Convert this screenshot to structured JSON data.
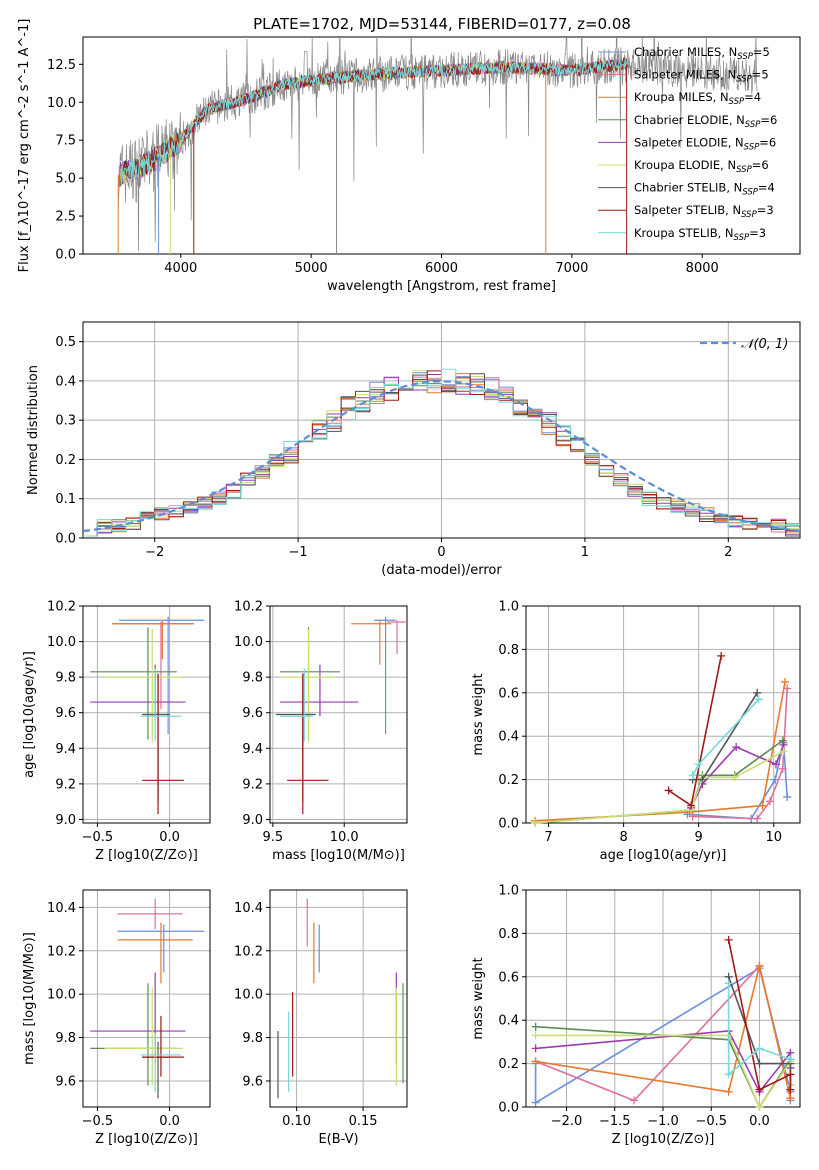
{
  "page_title": "PLATE=1702, MJD=53144, FIBERID=0177, z=0.08",
  "colors": {
    "chabrier_miles": "#6a8fdc",
    "salpeter_miles": "#e0709a",
    "kroupa_miles": "#e87a2c",
    "chabrier_elodie": "#5f8a5a",
    "salpeter_elodie": "#9b3bb0",
    "kroupa_elodie": "#c8e070",
    "chabrier_stelib": "#555555",
    "salpeter_stelib": "#a01818",
    "kroupa_stelib": "#78d8dc",
    "normal_curve": "#5a8fd8"
  },
  "chart_data": [
    {
      "id": "spectrum",
      "type": "line",
      "title": "PLATE=1702, MJD=53144, FIBERID=0177, z=0.08",
      "xlabel": "wavelength [Angstrom, rest frame]",
      "ylabel": "Flux [f_λ10^-17 erg cm^-2 s^-1 A^-1]",
      "xlim": [
        3250,
        8750
      ],
      "ylim": [
        0,
        14.3
      ],
      "xticks": [
        "4000",
        "5000",
        "6000",
        "7000",
        "8000"
      ],
      "yticks": [
        "0.0",
        "2.5",
        "5.0",
        "7.5",
        "10.0",
        "12.5"
      ],
      "grid": false,
      "legend_position": "right",
      "series": [
        {
          "name": "Chabrier MILES, N",
          "sub": "SSP",
          "suffix": "=5",
          "color": "#6a8fdc"
        },
        {
          "name": "Salpeter MILES, N",
          "sub": "SSP",
          "suffix": "=5",
          "color": "#e0709a"
        },
        {
          "name": "Kroupa MILES, N",
          "sub": "SSP",
          "suffix": "=4",
          "color": "#e87a2c"
        },
        {
          "name": "Chabrier ELODIE, N",
          "sub": "SSP",
          "suffix": "=6",
          "color": "#5f8a5a"
        },
        {
          "name": "Salpeter ELODIE, N",
          "sub": "SSP",
          "suffix": "=6",
          "color": "#9b3bb0"
        },
        {
          "name": "Kroupa ELODIE, N",
          "sub": "SSP",
          "suffix": "=6",
          "color": "#c8e070"
        },
        {
          "name": "Chabrier STELIB, N",
          "sub": "SSP",
          "suffix": "=4",
          "color": "#555555"
        },
        {
          "name": "Salpeter STELIB, N",
          "sub": "SSP",
          "suffix": "=3",
          "color": "#a01818"
        },
        {
          "name": "Kroupa STELIB, N",
          "sub": "SSP",
          "suffix": "=3",
          "color": "#78d8dc"
        }
      ],
      "continuum": {
        "wavelength": [
          3520,
          3700,
          3850,
          4000,
          4200,
          4500,
          4800,
          5200,
          5600,
          6000,
          6500,
          7000,
          7400
        ],
        "flux": [
          5.2,
          5.8,
          6.5,
          7.5,
          9.5,
          10.2,
          11.2,
          11.6,
          11.9,
          12.1,
          12.3,
          12.1,
          12.5
        ]
      }
    },
    {
      "id": "residuals",
      "type": "line",
      "xlabel": "(data-model)/error",
      "ylabel": "Normed distribution",
      "xlim": [
        -2.5,
        2.5
      ],
      "ylim": [
        0,
        0.55
      ],
      "xticks": [
        "−2",
        "−1",
        "0",
        "1",
        "2"
      ],
      "yticks": [
        "0.0",
        "0.1",
        "0.2",
        "0.3",
        "0.4",
        "0.5"
      ],
      "grid": true,
      "legend_position": "top-right",
      "legend_label": "𝒩(0, 1)",
      "normal_curve": {
        "mean": 0,
        "sigma": 1
      },
      "bins": {
        "start": -2.5,
        "width": 0.1
      },
      "histogram_center": [
        0.02,
        0.03,
        0.03,
        0.04,
        0.05,
        0.06,
        0.07,
        0.08,
        0.09,
        0.1,
        0.12,
        0.15,
        0.17,
        0.2,
        0.22,
        0.25,
        0.28,
        0.3,
        0.33,
        0.35,
        0.37,
        0.38,
        0.39,
        0.4,
        0.4,
        0.4,
        0.39,
        0.39,
        0.38,
        0.37,
        0.34,
        0.32,
        0.29,
        0.26,
        0.23,
        0.2,
        0.17,
        0.15,
        0.12,
        0.1,
        0.09,
        0.08,
        0.07,
        0.06,
        0.05,
        0.04,
        0.04,
        0.03,
        0.03,
        0.02
      ]
    },
    {
      "id": "age_vs_Z",
      "type": "scatter",
      "xlabel": "Z [log10(Z/Z⊙)]",
      "ylabel": "age  [log10(age/yr)]",
      "xlim": [
        -0.6,
        0.28
      ],
      "ylim": [
        8.98,
        10.2
      ],
      "xticks": [
        "−0.5",
        "0.0"
      ],
      "yticks": [
        "9.0",
        "9.2",
        "9.4",
        "9.6",
        "9.8",
        "10.0",
        "10.2"
      ],
      "grid": true,
      "points": [
        {
          "c": "chabrier_miles",
          "x": -0.01,
          "y": 10.12,
          "xlo": -0.35,
          "xhi": 0.24,
          "ylo": 9.48,
          "yhi": 10.14
        },
        {
          "c": "salpeter_miles",
          "x": -0.06,
          "y": 10.1,
          "xlo": -0.39,
          "xhi": 0.16,
          "ylo": 9.62,
          "yhi": 10.11
        },
        {
          "c": "kroupa_miles",
          "x": -0.05,
          "y": 10.1,
          "xlo": -0.4,
          "xhi": 0.17,
          "ylo": 9.9,
          "yhi": 10.12
        },
        {
          "c": "chabrier_elodie",
          "x": -0.15,
          "y": 9.83,
          "xlo": -0.55,
          "xhi": 0.05,
          "ylo": 9.45,
          "yhi": 10.08
        },
        {
          "c": "salpeter_elodie",
          "x": -0.1,
          "y": 9.66,
          "xlo": -0.55,
          "xhi": 0.11,
          "ylo": 9.58,
          "yhi": 9.87
        },
        {
          "c": "kroupa_elodie",
          "x": -0.12,
          "y": 9.8,
          "xlo": -0.45,
          "xhi": 0.09,
          "ylo": 9.43,
          "yhi": 10.07
        },
        {
          "c": "chabrier_stelib",
          "x": -0.08,
          "y": 9.59,
          "xlo": -0.19,
          "xhi": 0.0,
          "ylo": 9.1,
          "yhi": 9.82
        },
        {
          "c": "salpeter_stelib",
          "x": -0.08,
          "y": 9.22,
          "xlo": -0.19,
          "xhi": 0.1,
          "ylo": 9.03,
          "yhi": 9.82
        },
        {
          "c": "kroupa_stelib",
          "x": -0.1,
          "y": 9.58,
          "xlo": -0.2,
          "xhi": 0.08,
          "ylo": 9.44,
          "yhi": 9.85
        }
      ]
    },
    {
      "id": "age_vs_mass",
      "type": "scatter",
      "xlabel": "mass [log10(M/M⊙)]",
      "ylabel": "",
      "xlim": [
        9.48,
        10.44
      ],
      "ylim": [
        8.98,
        10.2
      ],
      "xticks": [
        "9.5",
        "10.0"
      ],
      "yticks": [
        "9.0",
        "9.2",
        "9.4",
        "9.6",
        "9.8",
        "10.0",
        "10.2"
      ],
      "grid": true,
      "points": [
        {
          "c": "chabrier_miles",
          "x": 10.29,
          "y": 10.12,
          "xlo": 10.21,
          "xhi": 10.36,
          "ylo": 9.48,
          "yhi": 10.14
        },
        {
          "c": "salpeter_miles",
          "x": 10.37,
          "y": 10.11,
          "xlo": 10.3,
          "xhi": 10.44,
          "ylo": 9.93,
          "yhi": 10.12
        },
        {
          "c": "kroupa_miles",
          "x": 10.25,
          "y": 10.1,
          "xlo": 10.05,
          "xhi": 10.33,
          "ylo": 9.87,
          "yhi": 10.12
        },
        {
          "c": "chabrier_elodie",
          "x": 9.75,
          "y": 9.83,
          "xlo": 9.55,
          "xhi": 9.97,
          "ylo": 9.45,
          "yhi": 10.08
        },
        {
          "c": "salpeter_elodie",
          "x": 9.83,
          "y": 9.66,
          "xlo": 9.55,
          "xhi": 10.1,
          "ylo": 9.58,
          "yhi": 9.87
        },
        {
          "c": "kroupa_elodie",
          "x": 9.75,
          "y": 9.8,
          "xlo": 9.57,
          "xhi": 9.93,
          "ylo": 9.43,
          "yhi": 10.07
        },
        {
          "c": "chabrier_stelib",
          "x": 9.71,
          "y": 9.59,
          "xlo": 9.52,
          "xhi": 9.8,
          "ylo": 9.1,
          "yhi": 9.82
        },
        {
          "c": "salpeter_stelib",
          "x": 9.71,
          "y": 9.22,
          "xlo": 9.6,
          "xhi": 9.89,
          "ylo": 9.03,
          "yhi": 9.82
        },
        {
          "c": "kroupa_stelib",
          "x": 9.72,
          "y": 9.58,
          "xlo": 9.55,
          "xhi": 9.78,
          "ylo": 9.44,
          "yhi": 9.85
        }
      ]
    },
    {
      "id": "weight_vs_age",
      "type": "line",
      "xlabel": "age  [log10(age/yr)]",
      "ylabel": "mass weight",
      "xlim": [
        6.7,
        10.35
      ],
      "ylim": [
        0,
        1
      ],
      "xticks": [
        "7",
        "8",
        "9",
        "10"
      ],
      "yticks": [
        "0.0",
        "0.2",
        "0.4",
        "0.6",
        "0.8",
        "1.0"
      ],
      "grid": true,
      "series": [
        {
          "c": "chabrier_miles",
          "x": [
            8.85,
            9.7,
            10.02,
            10.13,
            10.18
          ],
          "y": [
            0.04,
            0.02,
            0.2,
            0.37,
            0.12
          ]
        },
        {
          "c": "salpeter_miles",
          "x": [
            8.92,
            9.78,
            9.95,
            10.12,
            10.18
          ],
          "y": [
            0.03,
            0.02,
            0.1,
            0.25,
            0.62
          ]
        },
        {
          "c": "kroupa_miles",
          "x": [
            6.82,
            8.88,
            9.85,
            10.15
          ],
          "y": [
            0.01,
            0.05,
            0.08,
            0.65
          ]
        },
        {
          "c": "chabrier_elodie",
          "x": [
            6.82,
            8.9,
            9.05,
            9.48,
            10.12
          ],
          "y": [
            0.0,
            0.06,
            0.22,
            0.22,
            0.38
          ]
        },
        {
          "c": "salpeter_elodie",
          "x": [
            8.9,
            9.05,
            9.5,
            10.03,
            10.13
          ],
          "y": [
            0.07,
            0.18,
            0.35,
            0.27,
            0.36
          ]
        },
        {
          "c": "kroupa_elodie",
          "x": [
            6.82,
            8.9,
            9.05,
            9.48,
            10.13
          ],
          "y": [
            0.0,
            0.06,
            0.21,
            0.21,
            0.33
          ]
        },
        {
          "c": "chabrier_stelib",
          "x": [
            8.92,
            9.05,
            9.78
          ],
          "y": [
            0.2,
            0.2,
            0.6
          ]
        },
        {
          "c": "salpeter_stelib",
          "x": [
            8.6,
            8.9,
            9.3
          ],
          "y": [
            0.15,
            0.08,
            0.77
          ]
        },
        {
          "c": "kroupa_stelib",
          "x": [
            8.92,
            9.0,
            9.8
          ],
          "y": [
            0.22,
            0.27,
            0.57
          ]
        }
      ]
    },
    {
      "id": "mass_vs_Z",
      "type": "scatter",
      "xlabel": "Z [log10(Z/Z⊙)]",
      "ylabel": "mass [log10(M/M⊙)]",
      "xlim": [
        -0.6,
        0.28
      ],
      "ylim": [
        9.48,
        10.48
      ],
      "xticks": [
        "−0.5",
        "0.0"
      ],
      "yticks": [
        "9.6",
        "9.8",
        "10.0",
        "10.2",
        "10.4"
      ],
      "grid": true,
      "points": [
        {
          "c": "chabrier_miles",
          "x": -0.04,
          "y": 10.29,
          "xlo": -0.36,
          "xhi": 0.24,
          "ylo": 10.1,
          "yhi": 10.32
        },
        {
          "c": "salpeter_miles",
          "x": -0.1,
          "y": 10.37,
          "xlo": -0.36,
          "xhi": 0.09,
          "ylo": 10.3,
          "yhi": 10.44
        },
        {
          "c": "kroupa_miles",
          "x": -0.06,
          "y": 10.25,
          "xlo": -0.36,
          "xhi": 0.16,
          "ylo": 10.05,
          "yhi": 10.33
        },
        {
          "c": "chabrier_elodie",
          "x": -0.15,
          "y": 9.75,
          "xlo": -0.55,
          "xhi": 0.05,
          "ylo": 9.58,
          "yhi": 10.05
        },
        {
          "c": "salpeter_elodie",
          "x": -0.1,
          "y": 9.83,
          "xlo": -0.55,
          "xhi": 0.11,
          "ylo": 9.68,
          "yhi": 10.1
        },
        {
          "c": "kroupa_elodie",
          "x": -0.12,
          "y": 9.75,
          "xlo": -0.45,
          "xhi": 0.09,
          "ylo": 9.58,
          "yhi": 10.03
        },
        {
          "c": "chabrier_stelib",
          "x": -0.08,
          "y": 9.71,
          "xlo": -0.19,
          "xhi": 0.0,
          "ylo": 9.52,
          "yhi": 9.78
        },
        {
          "c": "salpeter_stelib",
          "x": -0.06,
          "y": 9.71,
          "xlo": -0.19,
          "xhi": 0.1,
          "ylo": 9.62,
          "yhi": 9.9
        },
        {
          "c": "kroupa_stelib",
          "x": -0.1,
          "y": 9.72,
          "xlo": -0.2,
          "xhi": 0.08,
          "ylo": 9.55,
          "yhi": 9.82
        }
      ]
    },
    {
      "id": "mass_vs_ebv",
      "type": "scatter",
      "xlabel": "E(B-V)",
      "ylabel": "",
      "xlim": [
        0.08,
        0.183
      ],
      "ylim": [
        9.48,
        10.48
      ],
      "xticks": [
        "0.10",
        "0.15"
      ],
      "yticks": [
        "9.6",
        "9.8",
        "10.0",
        "10.2",
        "10.4"
      ],
      "grid": true,
      "points": [
        {
          "c": "chabrier_miles",
          "x": 0.117,
          "y": 10.29,
          "xlo": 0.117,
          "xhi": 0.117,
          "ylo": 10.1,
          "yhi": 10.32
        },
        {
          "c": "salpeter_miles",
          "x": 0.108,
          "y": 10.37,
          "xlo": 0.108,
          "xhi": 0.108,
          "ylo": 10.22,
          "yhi": 10.44
        },
        {
          "c": "kroupa_miles",
          "x": 0.113,
          "y": 10.25,
          "xlo": 0.113,
          "xhi": 0.113,
          "ylo": 10.05,
          "yhi": 10.33
        },
        {
          "c": "chabrier_elodie",
          "x": 0.18,
          "y": 9.75,
          "xlo": 0.18,
          "xhi": 0.18,
          "ylo": 9.59,
          "yhi": 10.05
        },
        {
          "c": "salpeter_elodie",
          "x": 0.175,
          "y": 9.83,
          "xlo": 0.175,
          "xhi": 0.175,
          "ylo": 9.68,
          "yhi": 10.1
        },
        {
          "c": "kroupa_elodie",
          "x": 0.175,
          "y": 9.75,
          "xlo": 0.175,
          "xhi": 0.175,
          "ylo": 9.58,
          "yhi": 10.03
        },
        {
          "c": "chabrier_stelib",
          "x": 0.086,
          "y": 9.71,
          "xlo": 0.086,
          "xhi": 0.086,
          "ylo": 9.52,
          "yhi": 9.83
        },
        {
          "c": "salpeter_stelib",
          "x": 0.097,
          "y": 9.8,
          "xlo": 0.097,
          "xhi": 0.097,
          "ylo": 9.62,
          "yhi": 10.01
        },
        {
          "c": "kroupa_stelib",
          "x": 0.094,
          "y": 9.72,
          "xlo": 0.094,
          "xhi": 0.094,
          "ylo": 9.55,
          "yhi": 9.92
        }
      ]
    },
    {
      "id": "weight_vs_Z",
      "type": "line",
      "xlabel": "Z [log10(Z/Z⊙)]",
      "ylabel": "mass weight",
      "xlim": [
        -2.42,
        0.42
      ],
      "ylim": [
        0,
        1
      ],
      "xticks": [
        "−2.0",
        "−1.5",
        "−1.0",
        "−0.5",
        "0.0"
      ],
      "yticks": [
        "0.0",
        "0.2",
        "0.4",
        "0.6",
        "0.8",
        "1.0"
      ],
      "grid": true,
      "series": [
        {
          "c": "chabrier_miles",
          "x": [
            -2.32,
            -2.32,
            0.0,
            0.32,
            0.32
          ],
          "y": [
            0.2,
            0.02,
            0.64,
            0.07,
            0.03
          ]
        },
        {
          "c": "salpeter_miles",
          "x": [
            -2.32,
            -1.3,
            0.0,
            0.32
          ],
          "y": [
            0.21,
            0.03,
            0.65,
            0.04
          ]
        },
        {
          "c": "kroupa_miles",
          "x": [
            -2.32,
            -0.32,
            0.0,
            0.32
          ],
          "y": [
            0.21,
            0.07,
            0.65,
            0.04
          ]
        },
        {
          "c": "chabrier_elodie",
          "x": [
            -2.32,
            -0.32,
            0.0,
            0.32,
            0.32
          ],
          "y": [
            0.37,
            0.31,
            0.0,
            0.22,
            0.1
          ]
        },
        {
          "c": "salpeter_elodie",
          "x": [
            -2.32,
            -0.32,
            0.0,
            0.32,
            0.32
          ],
          "y": [
            0.27,
            0.35,
            0.07,
            0.25,
            0.18
          ]
        },
        {
          "c": "kroupa_elodie",
          "x": [
            -2.32,
            -0.32,
            0.0,
            0.32,
            0.32
          ],
          "y": [
            0.33,
            0.33,
            0.0,
            0.21,
            0.1
          ]
        },
        {
          "c": "chabrier_stelib",
          "x": [
            -0.32,
            0.0,
            0.32,
            0.32
          ],
          "y": [
            0.6,
            0.2,
            0.2,
            0.08
          ]
        },
        {
          "c": "salpeter_stelib",
          "x": [
            -0.32,
            0.0,
            0.32,
            0.32
          ],
          "y": [
            0.77,
            0.08,
            0.15,
            0.08
          ]
        },
        {
          "c": "kroupa_stelib",
          "x": [
            -0.32,
            -0.32,
            0.0,
            0.32
          ],
          "y": [
            0.57,
            0.15,
            0.27,
            0.22
          ]
        }
      ]
    }
  ]
}
